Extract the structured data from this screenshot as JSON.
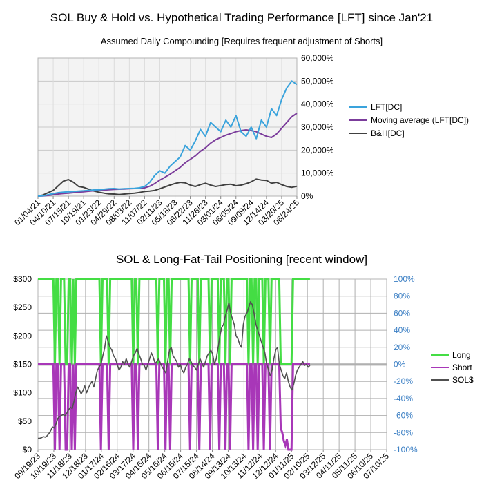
{
  "chart_data": [
    {
      "type": "line",
      "title": "SOL Buy & Hold vs. Hypothetical Trading Performance [LFT] since Jan'21",
      "subtitle": "Assumed Daily Compounding [Requires frequent adjustment of Shorts]",
      "x_ticks": [
        "01/04/21",
        "04/10/21",
        "07/15/21",
        "10/19/21",
        "01/23/22",
        "04/29/22",
        "08/03/22",
        "11/07/22",
        "02/11/23",
        "05/18/23",
        "08/22/23",
        "11/26/23",
        "03/01/24",
        "06/05/24",
        "09/09/24",
        "12/14/24",
        "03/20/25",
        "06/24/25"
      ],
      "y_ticks": [
        "0%",
        "10,000%",
        "20,000%",
        "30,000%",
        "40,000%",
        "50,000%",
        "60,000%"
      ],
      "ylim": [
        0,
        60000
      ],
      "grid": true,
      "legend_position": "right",
      "series": [
        {
          "name": "LFT[DC]",
          "color": "#3aa3dc",
          "values": [
            0,
            150,
            600,
            1100,
            1500,
            1700,
            1900,
            2000,
            2200,
            2300,
            2500,
            2700,
            2800,
            3000,
            3200,
            3300,
            3100,
            3200,
            3300,
            3400,
            3600,
            4200,
            6000,
            9000,
            11000,
            10000,
            13000,
            15000,
            17000,
            22000,
            20000,
            24000,
            29000,
            26000,
            32000,
            30000,
            28000,
            33000,
            30000,
            35000,
            28000,
            26000,
            30000,
            25000,
            33000,
            30000,
            38000,
            35000,
            42000,
            47000,
            50000,
            48500
          ]
        },
        {
          "name": "Moving average (LFT[DC])",
          "color": "#7b3c9b",
          "values": [
            0,
            100,
            300,
            600,
            900,
            1100,
            1300,
            1500,
            1700,
            1900,
            2100,
            2300,
            2450,
            2600,
            2800,
            2950,
            3000,
            3100,
            3200,
            3300,
            3400,
            3600,
            4300,
            5500,
            7000,
            8200,
            9500,
            11000,
            12500,
            14500,
            16000,
            17500,
            19500,
            21000,
            23000,
            24500,
            25500,
            26500,
            27200,
            28000,
            28500,
            28800,
            28500,
            28000,
            27000,
            26000,
            25500,
            27000,
            29500,
            32000,
            34500,
            36000
          ]
        },
        {
          "name": "B&H[DC]",
          "color": "#404040",
          "values": [
            0,
            500,
            1500,
            2500,
            4500,
            6500,
            7200,
            6000,
            4200,
            3800,
            3000,
            2200,
            1700,
            1300,
            1000,
            900,
            700,
            900,
            1100,
            1300,
            1600,
            2000,
            2200,
            2500,
            3200,
            4000,
            4800,
            5500,
            6000,
            5800,
            4800,
            4200,
            5000,
            5600,
            4800,
            4200,
            4600,
            5000,
            5200,
            4500,
            4800,
            5400,
            6200,
            7400,
            7000,
            6800,
            5600,
            6000,
            5000,
            4200,
            3800,
            4300
          ]
        }
      ]
    },
    {
      "type": "line",
      "title": "SOL & Long-Fat-Tail Positioning [recent window]",
      "x_ticks": [
        "09/19/23",
        "10/19/23",
        "11/18/23",
        "12/18/23",
        "01/17/24",
        "02/16/24",
        "03/17/24",
        "04/16/24",
        "05/16/24",
        "06/15/24",
        "07/15/24",
        "08/14/24",
        "09/13/24",
        "10/13/24",
        "11/12/24",
        "12/12/24",
        "01/11/25",
        "02/10/25",
        "03/12/25",
        "04/11/25",
        "05/11/25",
        "06/10/25",
        "07/10/25"
      ],
      "y_left_ticks": [
        "$0",
        "$50",
        "$100",
        "$150",
        "$200",
        "$250",
        "$300"
      ],
      "y_right_ticks": [
        "-100%",
        "-80%",
        "-60%",
        "-40%",
        "-20%",
        "0%",
        "20%",
        "40%",
        "60%",
        "80%",
        "100%"
      ],
      "ylim_left": [
        0,
        300
      ],
      "ylim_right": [
        -100,
        100
      ],
      "grid": true,
      "legend_position": "right",
      "series": [
        {
          "name": "Long",
          "color": "#44dd44",
          "axis": "right",
          "values": [
            100,
            100,
            100,
            100,
            100,
            100,
            100,
            100,
            100,
            100,
            100,
            0,
            100,
            100,
            0,
            100,
            100,
            100,
            0,
            0,
            100,
            100,
            0,
            100,
            0,
            100,
            100,
            100,
            100,
            100,
            100,
            100,
            100,
            100,
            100,
            100,
            100,
            100,
            100,
            100,
            100,
            0,
            100,
            100,
            100,
            100,
            0,
            100,
            100,
            100,
            100,
            100,
            100,
            100,
            100,
            100,
            100,
            100,
            100,
            100,
            100,
            100,
            0,
            100,
            100,
            0,
            100,
            100,
            100,
            100,
            100,
            100,
            100,
            100,
            100,
            100,
            100,
            100,
            0,
            100,
            100,
            100,
            100,
            0,
            100,
            100,
            0,
            100,
            100,
            100,
            100,
            100,
            100,
            100,
            100,
            100,
            100,
            100,
            100,
            0,
            100,
            100,
            100,
            100,
            100,
            0,
            100,
            100,
            100,
            100,
            100,
            100,
            0,
            100,
            100,
            100,
            100,
            100,
            0,
            100,
            100,
            100,
            0,
            100,
            100,
            0,
            100,
            100,
            100,
            100,
            100,
            100,
            100,
            100,
            100,
            100,
            100,
            0,
            100,
            100,
            0,
            100,
            100,
            0,
            100,
            100,
            100,
            0,
            100,
            100,
            100,
            0,
            100,
            100,
            100,
            100,
            100,
            100,
            0,
            0,
            0,
            0,
            0,
            0,
            0,
            0,
            100,
            100,
            100,
            100,
            100,
            100,
            100,
            100,
            100,
            100,
            100,
            100
          ]
        },
        {
          "name": "Short",
          "color": "#a837b8",
          "axis": "right",
          "values": [
            0,
            0,
            0,
            0,
            0,
            0,
            0,
            0,
            0,
            0,
            0,
            -100,
            0,
            0,
            -100,
            0,
            0,
            0,
            -100,
            -100,
            0,
            0,
            -100,
            0,
            -100,
            0,
            0,
            0,
            0,
            0,
            0,
            0,
            0,
            0,
            0,
            0,
            0,
            0,
            0,
            0,
            0,
            -100,
            0,
            0,
            0,
            0,
            -100,
            0,
            0,
            0,
            0,
            0,
            0,
            0,
            0,
            0,
            0,
            0,
            0,
            0,
            0,
            0,
            -100,
            0,
            0,
            -100,
            0,
            0,
            0,
            0,
            0,
            0,
            0,
            0,
            0,
            0,
            0,
            0,
            -100,
            0,
            0,
            0,
            0,
            -100,
            0,
            0,
            -100,
            0,
            0,
            0,
            0,
            0,
            0,
            0,
            0,
            0,
            0,
            0,
            0,
            -100,
            0,
            0,
            0,
            0,
            0,
            -100,
            0,
            0,
            0,
            0,
            0,
            0,
            -100,
            0,
            0,
            0,
            0,
            0,
            -100,
            0,
            0,
            0,
            -100,
            0,
            0,
            -100,
            0,
            0,
            0,
            0,
            0,
            0,
            0,
            0,
            0,
            0,
            0,
            -100,
            0,
            0,
            -100,
            0,
            0,
            -100,
            0,
            0,
            0,
            -100,
            0,
            0,
            0,
            -100,
            0,
            0,
            0,
            0,
            0,
            0,
            -75,
            -80,
            -90,
            -95,
            -88,
            -100,
            -100,
            -100,
            0,
            0,
            0,
            0,
            0,
            0,
            0,
            0,
            0,
            0,
            0,
            0
          ]
        },
        {
          "name": "SOL$",
          "color": "#505050",
          "axis": "left",
          "values": [
            20,
            20,
            21,
            23,
            22,
            24,
            28,
            33,
            40,
            38,
            45,
            55,
            58,
            60,
            62,
            59,
            64,
            70,
            75,
            72,
            85,
            100,
            110,
            105,
            98,
            104,
            112,
            100,
            108,
            115,
            120,
            110,
            125,
            140,
            145,
            150,
            165,
            178,
            200,
            190,
            180,
            175,
            165,
            160,
            150,
            140,
            145,
            155,
            150,
            160,
            150,
            145,
            155,
            165,
            170,
            178,
            168,
            160,
            150,
            148,
            140,
            150,
            160,
            170,
            162,
            152,
            155,
            160,
            152,
            145,
            140,
            135,
            155,
            175,
            180,
            165,
            160,
            155,
            145,
            150,
            140,
            135,
            145,
            150,
            160,
            155,
            148,
            145,
            140,
            150,
            160,
            152,
            145,
            155,
            165,
            170,
            175,
            168,
            150,
            160,
            180,
            200,
            215,
            220,
            235,
            245,
            258,
            240,
            230,
            220,
            200,
            195,
            185,
            180,
            220,
            235,
            240,
            250,
            260,
            255,
            240,
            220,
            210,
            200,
            190,
            180,
            170,
            150,
            140,
            130,
            140,
            160,
            175,
            180,
            150,
            140,
            130,
            125,
            135,
            120,
            110,
            105,
            115,
            130,
            140,
            145,
            150,
            155,
            148,
            150,
            145,
            148
          ]
        }
      ]
    }
  ]
}
